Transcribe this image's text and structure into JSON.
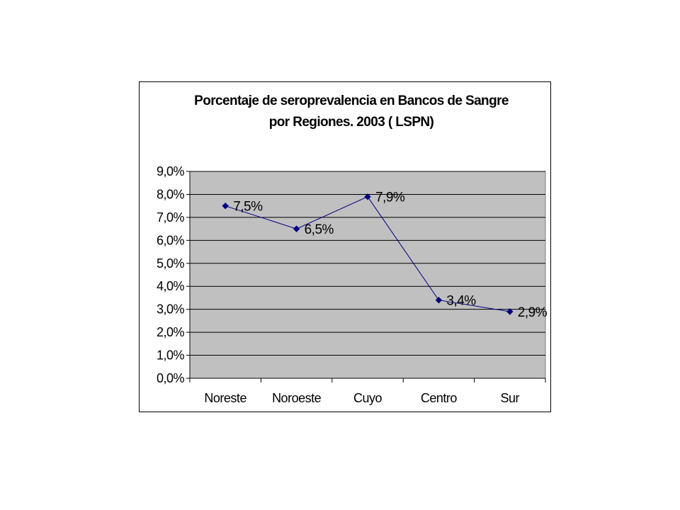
{
  "chart_data": {
    "type": "line",
    "title_lines": [
      "Porcentaje de seroprevalencia en Bancos de Sangre",
      "por Regiones. 2003 ( LSPN)"
    ],
    "categories": [
      "Noreste",
      "Noroeste",
      "Cuyo",
      "Centro",
      "Sur"
    ],
    "series": [
      {
        "values": [
          7.5,
          6.5,
          7.9,
          3.4,
          2.9
        ],
        "data_labels": [
          "7,5%",
          "6,5%",
          "7,9%",
          "3,4%",
          "2,9%"
        ],
        "color": "#000080",
        "marker": "diamond"
      }
    ],
    "ylim": [
      0,
      9
    ],
    "y_ticks": [
      0,
      1,
      2,
      3,
      4,
      5,
      6,
      7,
      8,
      9
    ],
    "y_tick_labels": [
      "0,0%",
      "1,0%",
      "2,0%",
      "3,0%",
      "4,0%",
      "5,0%",
      "6,0%",
      "7,0%",
      "8,0%",
      "9,0%"
    ],
    "xlabel": "",
    "ylabel": "",
    "grid": true,
    "legend": false,
    "colors": {
      "plot_background": "#c0c0c0",
      "gridline": "#000000",
      "line": "#000080",
      "marker": "#000080"
    }
  }
}
